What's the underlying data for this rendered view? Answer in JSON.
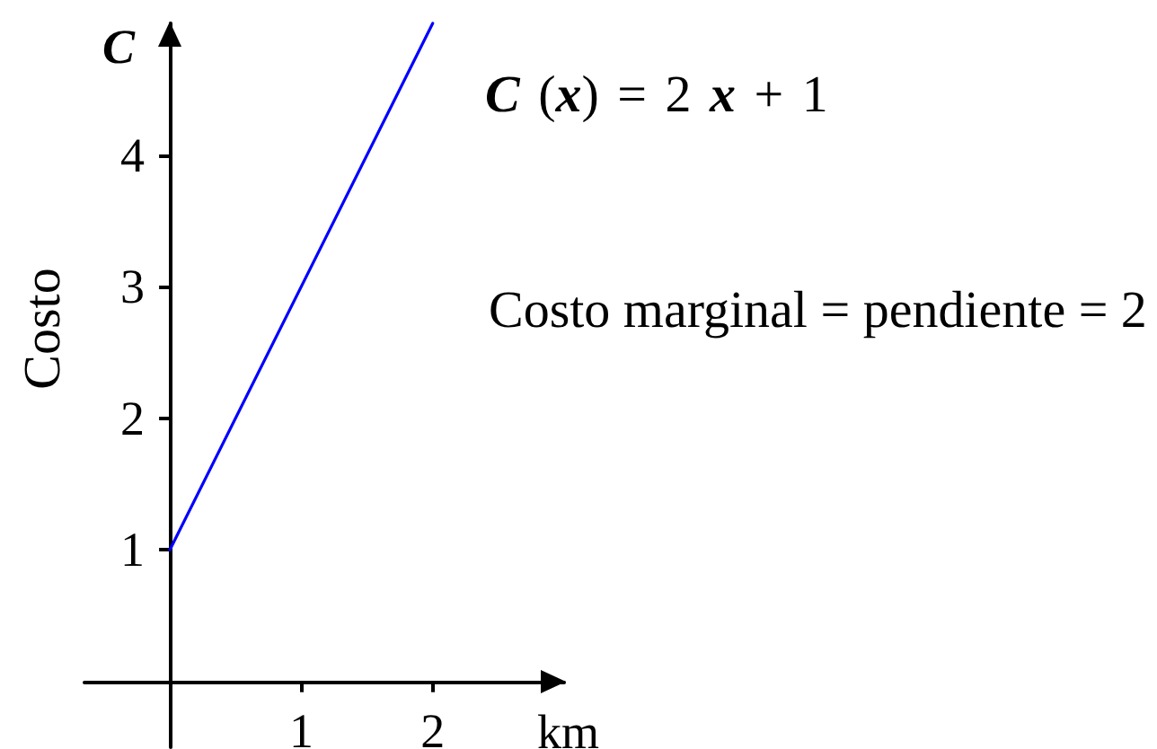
{
  "chart_data": {
    "type": "line",
    "xlabel": "km",
    "ylabel": "Costo",
    "annotations": [
      "C",
      "C (x) = 2 x + 1",
      "Costo marginal = pendiente = 2"
    ],
    "x": [
      0,
      2
    ],
    "values": [
      1,
      5
    ],
    "color": "#0000ff",
    "xlim": [
      -0.65,
      3
    ],
    "ylim": [
      -0.5,
      5
    ],
    "xticks": [
      1,
      2
    ],
    "yticks": [
      1,
      2,
      3,
      4
    ],
    "grid": false,
    "marker": "none",
    "line_style": "solid"
  }
}
